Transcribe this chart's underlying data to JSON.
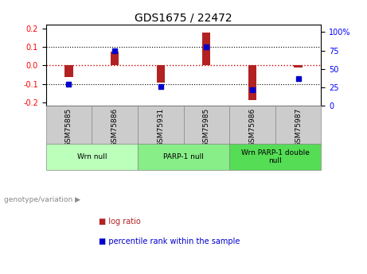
{
  "title": "GDS1675 / 22472",
  "samples": [
    "GSM75885",
    "GSM75886",
    "GSM75931",
    "GSM75985",
    "GSM75986",
    "GSM75987"
  ],
  "log_ratios": [
    -0.062,
    0.075,
    -0.095,
    0.177,
    -0.19,
    -0.01
  ],
  "percentile_ranks": [
    30,
    75,
    26,
    80,
    22,
    37
  ],
  "ylim_left": [
    -0.22,
    0.22
  ],
  "ylim_right": [
    0,
    110
  ],
  "yticks_left": [
    -0.2,
    -0.1,
    0.0,
    0.1,
    0.2
  ],
  "yticks_right": [
    0,
    25,
    50,
    75,
    100
  ],
  "ytick_labels_right": [
    "0",
    "25",
    "50",
    "75",
    "100%"
  ],
  "bar_color": "#b22222",
  "point_color": "#0000cc",
  "zero_line_color": "#cc0000",
  "groups": [
    {
      "label": "Wrn null",
      "indices": [
        0,
        1
      ],
      "color": "#bbffbb"
    },
    {
      "label": "PARP-1 null",
      "indices": [
        2,
        3
      ],
      "color": "#88ee88"
    },
    {
      "label": "Wrn PARP-1 double\nnull",
      "indices": [
        4,
        5
      ],
      "color": "#55dd55"
    }
  ],
  "legend_labels": [
    "log ratio",
    "percentile rank within the sample"
  ],
  "genotype_label": "genotype/variation",
  "background_color": "#ffffff",
  "plot_bg_color": "#ffffff",
  "label_box_color": "#cccccc",
  "bar_width": 0.18
}
